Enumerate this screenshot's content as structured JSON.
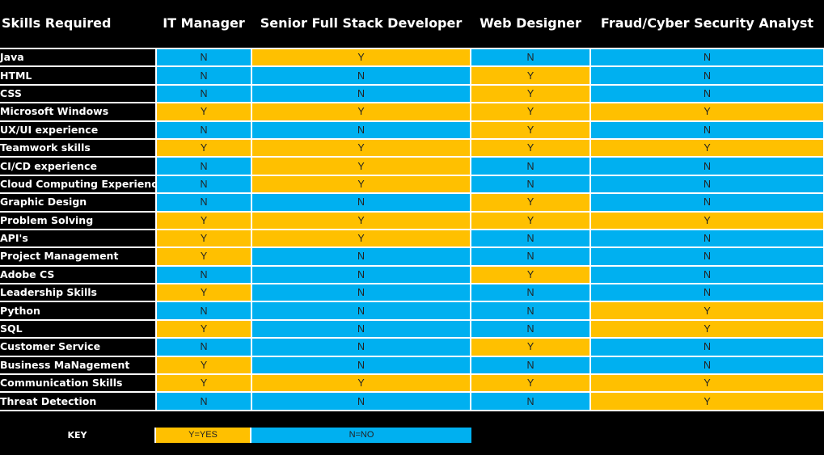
{
  "header": {
    "first": "Skills Required",
    "columns": [
      "IT Manager",
      "Senior Full Stack Developer",
      "Web Designer",
      "Fraud/Cyber Security Analyst"
    ]
  },
  "colors": {
    "yes": "#ffc000",
    "no": "#00b0f0",
    "background": "#000000"
  },
  "rows": [
    {
      "skill": "Java",
      "values": [
        "N",
        "Y",
        "N",
        "N"
      ]
    },
    {
      "skill": "HTML",
      "values": [
        "N",
        "N",
        "Y",
        "N"
      ]
    },
    {
      "skill": "CSS",
      "values": [
        "N",
        "N",
        "Y",
        "N"
      ]
    },
    {
      "skill": "Microsoft Windows",
      "values": [
        "Y",
        "Y",
        "Y",
        "Y"
      ]
    },
    {
      "skill": "UX/UI experience",
      "values": [
        "N",
        "N",
        "Y",
        "N"
      ]
    },
    {
      "skill": "Teamwork skills",
      "values": [
        "Y",
        "Y",
        "Y",
        "Y"
      ]
    },
    {
      "skill": "CI/CD experience",
      "values": [
        "N",
        "Y",
        "N",
        "N"
      ]
    },
    {
      "skill": "Cloud Computing Experience",
      "values": [
        "N",
        "Y",
        "N",
        "N"
      ]
    },
    {
      "skill": "Graphic Design",
      "values": [
        "N",
        "N",
        "Y",
        "N"
      ]
    },
    {
      "skill": "Problem Solving",
      "values": [
        "Y",
        "Y",
        "Y",
        "Y"
      ]
    },
    {
      "skill": "API's",
      "values": [
        "Y",
        "Y",
        "N",
        "N"
      ]
    },
    {
      "skill": "Project Management",
      "values": [
        "Y",
        "N",
        "N",
        "N"
      ]
    },
    {
      "skill": "Adobe CS",
      "values": [
        "N",
        "N",
        "Y",
        "N"
      ]
    },
    {
      "skill": "Leadership Skills",
      "values": [
        "Y",
        "N",
        "N",
        "N"
      ]
    },
    {
      "skill": "Python",
      "values": [
        "N",
        "N",
        "N",
        "Y"
      ]
    },
    {
      "skill": "SQL",
      "values": [
        "Y",
        "N",
        "N",
        "Y"
      ]
    },
    {
      "skill": "Customer Service",
      "values": [
        "N",
        "N",
        "Y",
        "N"
      ]
    },
    {
      "skill": "Business MaNagement",
      "values": [
        "Y",
        "N",
        "N",
        "N"
      ]
    },
    {
      "skill": "Communication Skills",
      "values": [
        "Y",
        "Y",
        "Y",
        "Y"
      ]
    },
    {
      "skill": "Threat Detection",
      "values": [
        "N",
        "N",
        "N",
        "Y"
      ]
    }
  ],
  "key": {
    "label": "KEY",
    "yes": "Y=YES",
    "no": "N=NO"
  }
}
